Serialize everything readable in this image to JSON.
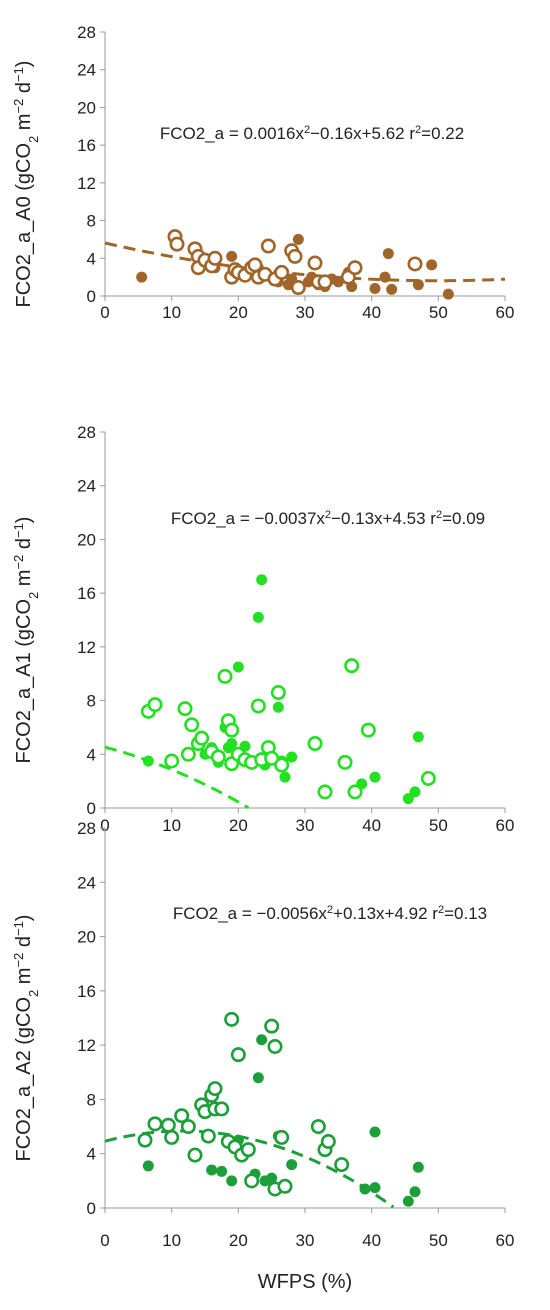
{
  "chart_data": [
    {
      "type": "scatter",
      "title": "",
      "xlabel": "",
      "ylabel": "FCO2_a_A0 (gCO2 m−2 d−1)",
      "ylabel_parts": [
        "FCO2_a_A0 (gCO",
        "2",
        " m",
        "−2",
        " d",
        "−1",
        ")"
      ],
      "xlim": [
        0,
        60
      ],
      "ylim": [
        0,
        28
      ],
      "x_ticks": [
        "0",
        "10",
        "20",
        "30",
        "40",
        "50",
        "60"
      ],
      "y_ticks": [
        "0",
        "4",
        "8",
        "12",
        "16",
        "20",
        "24",
        "28"
      ],
      "color": "#A0652A",
      "equation_parts": [
        "FCO2_a = 0.0016x",
        "2",
        "−0.16x+5.62 r",
        "2",
        "=0.22"
      ],
      "fit": {
        "a": 0.0016,
        "b": -0.16,
        "c": 5.62,
        "r2": 0.22
      },
      "series": [
        {
          "marker": "filled",
          "x": [
            5.5,
            15,
            16.5,
            19,
            22,
            23,
            26,
            27.5,
            28,
            29,
            30.5,
            31,
            32,
            33,
            34,
            35,
            36.5,
            37,
            40.5,
            42,
            42.5,
            43,
            47,
            49,
            51.5
          ],
          "y": [
            2.0,
            3.5,
            3.0,
            4.2,
            2.5,
            3.0,
            1.5,
            1.2,
            1.8,
            6.0,
            1.5,
            2.0,
            1.2,
            1.0,
            1.8,
            1.5,
            2.5,
            1.0,
            0.8,
            2.0,
            4.5,
            0.7,
            1.2,
            3.3,
            0.2
          ]
        },
        {
          "marker": "open",
          "x": [
            10.5,
            10.8,
            13.5,
            14,
            14,
            15,
            16,
            16.5,
            19,
            19.5,
            20,
            21,
            22,
            22.5,
            23,
            24,
            24.5,
            25.5,
            26.5,
            28,
            28.5,
            29,
            31.5,
            32,
            33,
            36.5,
            37.5,
            46.5
          ],
          "y": [
            6.3,
            5.5,
            5.0,
            4.2,
            3.0,
            3.8,
            3.2,
            4.0,
            2.0,
            2.8,
            2.5,
            2.2,
            3.0,
            3.3,
            2.0,
            2.3,
            5.3,
            1.8,
            2.5,
            4.8,
            4.2,
            0.9,
            3.5,
            1.5,
            1.5,
            2.0,
            3.0,
            3.4
          ]
        }
      ]
    },
    {
      "type": "scatter",
      "title": "",
      "xlabel": "",
      "ylabel": "FCO2_a_A1 (gCO2 m−2 d−1)",
      "ylabel_parts": [
        "FCO2_a_A1 (gCO",
        "2",
        " m",
        "−2",
        " d",
        "−1",
        ")"
      ],
      "xlim": [
        0,
        60
      ],
      "ylim": [
        0,
        28
      ],
      "x_ticks": [
        "0",
        "10",
        "20",
        "30",
        "40",
        "50",
        "60"
      ],
      "y_ticks": [
        "0",
        "4",
        "8",
        "12",
        "16",
        "20",
        "24",
        "28"
      ],
      "color": "#22E022",
      "equation_parts": [
        "FCO2_a = −0.0037x",
        "2",
        "−0.13x+4.53 r",
        "2",
        "=0.09"
      ],
      "fit": {
        "a": -0.0037,
        "b": -0.13,
        "c": 4.53,
        "r2": 0.09
      },
      "series": [
        {
          "marker": "filled",
          "x": [
            6.5,
            15,
            16,
            17,
            18,
            18.5,
            19,
            20,
            20.5,
            21,
            22,
            23,
            23.5,
            24,
            25,
            26,
            26.5,
            27,
            28,
            38.5,
            40.5,
            45.5,
            46.5,
            47
          ],
          "y": [
            3.5,
            4.0,
            4.5,
            3.4,
            6.0,
            4.5,
            4.8,
            10.5,
            3.8,
            4.6,
            3.5,
            14.2,
            17.0,
            3.2,
            3.8,
            7.5,
            3.5,
            2.3,
            3.8,
            1.8,
            2.3,
            0.7,
            1.2,
            5.3
          ]
        },
        {
          "marker": "open",
          "x": [
            6.5,
            7.5,
            10,
            12,
            12.5,
            13,
            14,
            14.5,
            16,
            17,
            18,
            18.5,
            19,
            19,
            20,
            21,
            22,
            23,
            23.5,
            24.5,
            25,
            26,
            26.5,
            31.5,
            33,
            36,
            37,
            37.5,
            39.5,
            48.5
          ],
          "y": [
            7.2,
            7.7,
            3.5,
            7.4,
            4.0,
            6.2,
            4.8,
            5.2,
            4.2,
            3.8,
            9.8,
            6.5,
            3.3,
            5.8,
            4.0,
            3.6,
            3.4,
            7.6,
            3.6,
            4.5,
            3.7,
            8.6,
            3.2,
            4.8,
            1.2,
            3.4,
            10.6,
            1.2,
            5.8,
            2.2
          ]
        }
      ]
    },
    {
      "type": "scatter",
      "title": "",
      "xlabel": "WFPS (%)",
      "ylabel": "FCO2_a_A2 (gCO2 m−2 d−1)",
      "ylabel_parts": [
        "FCO2_a_A2 (gCO",
        "2",
        " m",
        "−2",
        " d",
        "−1",
        ")"
      ],
      "xlim": [
        0,
        60
      ],
      "ylim": [
        0,
        28
      ],
      "x_ticks": [
        "0",
        "10",
        "20",
        "30",
        "40",
        "50",
        "60"
      ],
      "y_ticks": [
        "0",
        "4",
        "8",
        "12",
        "16",
        "20",
        "24",
        "28"
      ],
      "color": "#1E9E3A",
      "equation_parts": [
        "FCO2_a = −0.0056x",
        "2",
        "+0.13x+4.92 r",
        "2",
        "=0.13"
      ],
      "fit": {
        "a": -0.0056,
        "b": 0.13,
        "c": 4.92,
        "r2": 0.13
      },
      "series": [
        {
          "marker": "filled",
          "x": [
            6.5,
            16,
            17.5,
            19,
            20,
            21,
            22.5,
            23,
            23.5,
            24,
            25,
            26,
            28,
            39,
            40.5,
            40.5,
            45.5,
            46.5,
            47
          ],
          "y": [
            3.1,
            2.8,
            2.7,
            2.0,
            5.0,
            4.0,
            2.5,
            9.6,
            12.4,
            2.0,
            2.2,
            5.3,
            3.2,
            1.4,
            5.6,
            1.5,
            0.5,
            1.2,
            3.0
          ]
        },
        {
          "marker": "open",
          "x": [
            6,
            7.5,
            9.5,
            10,
            11.5,
            12.5,
            13.5,
            14.5,
            15,
            15.5,
            16,
            16.5,
            16.5,
            17.5,
            18.5,
            19,
            19.5,
            20,
            20.5,
            21.5,
            22,
            25,
            25.5,
            25.5,
            26.5,
            27,
            32,
            33,
            33.5,
            35.5
          ],
          "y": [
            5.0,
            6.2,
            6.1,
            5.2,
            6.8,
            6.0,
            3.9,
            7.6,
            7.1,
            5.3,
            8.3,
            8.8,
            7.3,
            7.3,
            4.9,
            13.9,
            4.5,
            11.3,
            3.9,
            4.3,
            2.0,
            13.4,
            11.9,
            1.4,
            5.2,
            1.6,
            6.0,
            4.3,
            4.9,
            3.2
          ]
        }
      ]
    }
  ]
}
